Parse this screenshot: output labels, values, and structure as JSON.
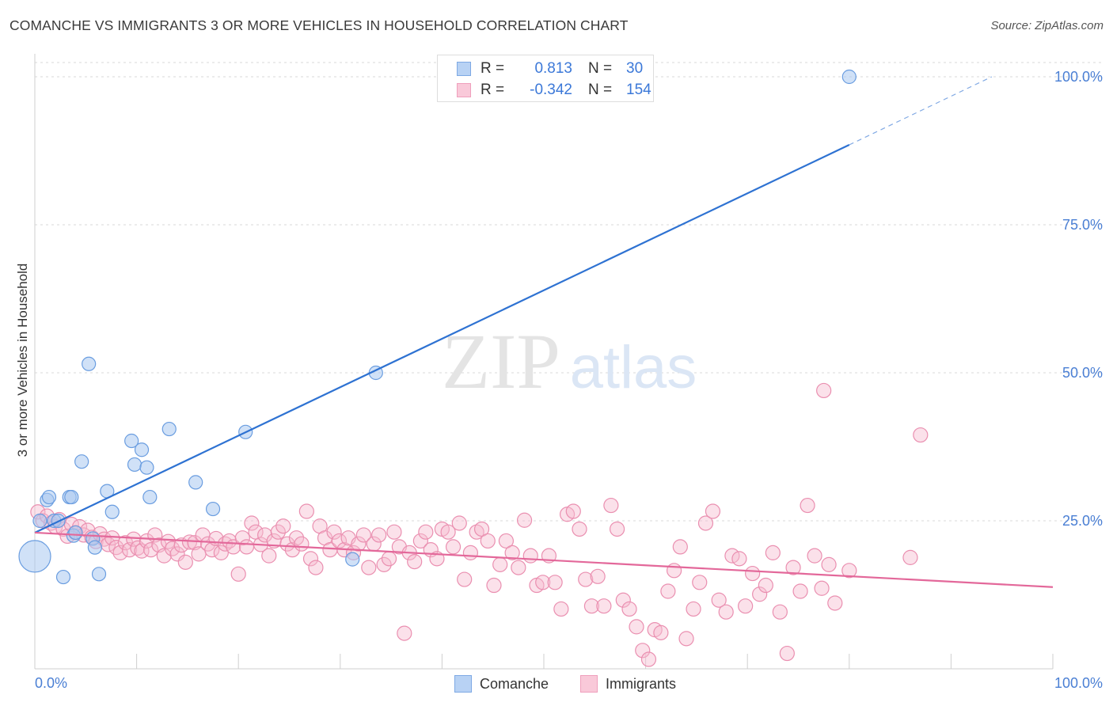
{
  "title": "COMANCHE VS IMMIGRANTS 3 OR MORE VEHICLES IN HOUSEHOLD CORRELATION CHART",
  "source": "Source: ZipAtlas.com",
  "watermark": {
    "zip": "ZIP",
    "atlas": "atlas"
  },
  "legend": {
    "rows": [
      {
        "r_label": "R =",
        "r_value": "0.813",
        "n_label": "N =",
        "n_value": "30"
      },
      {
        "r_label": "R =",
        "r_value": "-0.342",
        "n_label": "N =",
        "n_value": "154"
      }
    ]
  },
  "colors": {
    "blue_fill": "#a9c8f0",
    "blue_stroke": "#6a9de0",
    "blue_line": "#2e72d2",
    "pink_fill": "#f6bdd0",
    "pink_stroke": "#ea8fb0",
    "pink_line": "#e3689a",
    "axis_label": "#4a7fd4",
    "grid": "#d9d9d9"
  },
  "chart_data": {
    "type": "scatter",
    "ylabel": "3 or more Vehicles in Household",
    "xlim": [
      0,
      100
    ],
    "ylim": [
      0,
      100
    ],
    "x_tick_labels": [
      "0.0%",
      "100.0%"
    ],
    "y_ticks": [
      {
        "value": 25,
        "label": "25.0%"
      },
      {
        "value": 50,
        "label": "50.0%"
      },
      {
        "value": 75,
        "label": "75.0%"
      },
      {
        "value": 100,
        "label": "100.0%"
      }
    ],
    "grid": true,
    "series": [
      {
        "name": "Comanche",
        "color": "#a9c8f0",
        "points": [
          [
            0.0,
            19.0
          ],
          [
            0.5,
            25.0
          ],
          [
            1.2,
            28.5
          ],
          [
            1.4,
            29.0
          ],
          [
            1.9,
            25.0
          ],
          [
            2.3,
            25.0
          ],
          [
            2.8,
            15.5
          ],
          [
            3.4,
            29.0
          ],
          [
            3.6,
            29.0
          ],
          [
            3.8,
            22.5
          ],
          [
            4.0,
            23.0
          ],
          [
            4.6,
            35.0
          ],
          [
            5.3,
            51.5
          ],
          [
            5.7,
            22.0
          ],
          [
            5.9,
            20.5
          ],
          [
            6.3,
            16.0
          ],
          [
            7.1,
            30.0
          ],
          [
            7.6,
            26.5
          ],
          [
            9.5,
            38.5
          ],
          [
            9.8,
            34.5
          ],
          [
            10.5,
            37.0
          ],
          [
            11.0,
            34.0
          ],
          [
            11.3,
            29.0
          ],
          [
            13.2,
            40.5
          ],
          [
            15.8,
            31.5
          ],
          [
            17.5,
            27.0
          ],
          [
            20.7,
            40.0
          ],
          [
            31.2,
            18.5
          ],
          [
            33.5,
            50.0
          ],
          [
            80.0,
            100.0
          ]
        ],
        "trend": {
          "x0": 0,
          "y0": 23.0,
          "x1": 80,
          "y1": 88.5,
          "dash_to_x": 94,
          "dash_to_y": 100
        }
      },
      {
        "name": "Immigrants",
        "color": "#f6bdd0",
        "points": [
          [
            0.3,
            26.5
          ],
          [
            0.8,
            25.0
          ],
          [
            1.2,
            25.8
          ],
          [
            1.6,
            24.6
          ],
          [
            2.0,
            24.0
          ],
          [
            2.4,
            25.2
          ],
          [
            2.8,
            23.6
          ],
          [
            3.2,
            22.4
          ],
          [
            3.6,
            24.4
          ],
          [
            4.0,
            23.0
          ],
          [
            4.4,
            24.0
          ],
          [
            4.8,
            22.6
          ],
          [
            5.2,
            23.4
          ],
          [
            5.6,
            22.2
          ],
          [
            6.0,
            21.5
          ],
          [
            6.4,
            22.8
          ],
          [
            6.8,
            21.9
          ],
          [
            7.2,
            21.0
          ],
          [
            7.6,
            22.1
          ],
          [
            8.0,
            20.5
          ],
          [
            8.4,
            19.6
          ],
          [
            8.9,
            21.3
          ],
          [
            9.3,
            20.1
          ],
          [
            9.7,
            21.9
          ],
          [
            10.1,
            20.4
          ],
          [
            10.5,
            19.9
          ],
          [
            11.0,
            21.6
          ],
          [
            11.4,
            20.1
          ],
          [
            11.8,
            22.6
          ],
          [
            12.2,
            20.9
          ],
          [
            12.7,
            19.1
          ],
          [
            13.1,
            21.5
          ],
          [
            13.5,
            20.3
          ],
          [
            14.0,
            19.4
          ],
          [
            14.4,
            20.9
          ],
          [
            14.8,
            18.0
          ],
          [
            15.2,
            21.4
          ],
          [
            15.7,
            21.3
          ],
          [
            16.1,
            19.4
          ],
          [
            16.5,
            22.6
          ],
          [
            17.0,
            21.1
          ],
          [
            17.4,
            20.1
          ],
          [
            17.8,
            22.0
          ],
          [
            18.3,
            19.6
          ],
          [
            18.7,
            21.1
          ],
          [
            19.1,
            21.6
          ],
          [
            19.5,
            20.6
          ],
          [
            20.0,
            16.0
          ],
          [
            20.4,
            22.1
          ],
          [
            20.8,
            20.6
          ],
          [
            21.3,
            24.6
          ],
          [
            21.7,
            23.1
          ],
          [
            22.2,
            21.0
          ],
          [
            22.6,
            22.6
          ],
          [
            23.0,
            19.1
          ],
          [
            23.5,
            21.6
          ],
          [
            23.9,
            23.1
          ],
          [
            24.4,
            24.1
          ],
          [
            24.8,
            21.1
          ],
          [
            25.3,
            20.1
          ],
          [
            25.7,
            22.1
          ],
          [
            26.2,
            21.1
          ],
          [
            26.7,
            26.6
          ],
          [
            27.1,
            18.6
          ],
          [
            27.6,
            17.1
          ],
          [
            28.0,
            24.1
          ],
          [
            28.5,
            22.1
          ],
          [
            29.0,
            20.1
          ],
          [
            29.4,
            23.1
          ],
          [
            29.9,
            21.6
          ],
          [
            30.4,
            20.1
          ],
          [
            30.8,
            22.1
          ],
          [
            31.3,
            19.6
          ],
          [
            31.8,
            21.1
          ],
          [
            32.3,
            22.6
          ],
          [
            32.8,
            17.1
          ],
          [
            33.3,
            21.1
          ],
          [
            33.8,
            22.6
          ],
          [
            34.3,
            17.6
          ],
          [
            34.8,
            18.6
          ],
          [
            35.3,
            23.1
          ],
          [
            35.8,
            20.6
          ],
          [
            36.3,
            6.0
          ],
          [
            36.8,
            19.6
          ],
          [
            37.3,
            18.1
          ],
          [
            37.9,
            21.6
          ],
          [
            38.4,
            23.1
          ],
          [
            38.9,
            20.1
          ],
          [
            39.5,
            18.6
          ],
          [
            40.0,
            23.6
          ],
          [
            40.6,
            23.1
          ],
          [
            41.1,
            20.6
          ],
          [
            41.7,
            24.6
          ],
          [
            42.2,
            15.1
          ],
          [
            42.8,
            19.6
          ],
          [
            43.4,
            23.1
          ],
          [
            43.9,
            23.6
          ],
          [
            44.5,
            21.6
          ],
          [
            45.1,
            14.1
          ],
          [
            45.7,
            17.6
          ],
          [
            46.3,
            21.6
          ],
          [
            46.9,
            19.6
          ],
          [
            47.5,
            17.1
          ],
          [
            48.1,
            25.1
          ],
          [
            48.7,
            19.1
          ],
          [
            49.3,
            14.1
          ],
          [
            49.9,
            14.6
          ],
          [
            50.5,
            19.1
          ],
          [
            51.1,
            14.6
          ],
          [
            51.7,
            10.1
          ],
          [
            52.3,
            26.1
          ],
          [
            52.9,
            26.6
          ],
          [
            53.5,
            23.6
          ],
          [
            54.1,
            15.1
          ],
          [
            54.7,
            10.6
          ],
          [
            55.3,
            15.6
          ],
          [
            55.9,
            10.6
          ],
          [
            56.6,
            27.6
          ],
          [
            57.2,
            23.6
          ],
          [
            57.8,
            11.6
          ],
          [
            58.4,
            10.1
          ],
          [
            59.1,
            7.1
          ],
          [
            59.7,
            3.1
          ],
          [
            60.3,
            1.6
          ],
          [
            60.9,
            6.6
          ],
          [
            61.5,
            6.1
          ],
          [
            62.2,
            13.1
          ],
          [
            62.8,
            16.6
          ],
          [
            63.4,
            20.6
          ],
          [
            64.0,
            5.1
          ],
          [
            64.7,
            10.1
          ],
          [
            65.3,
            14.6
          ],
          [
            65.9,
            24.6
          ],
          [
            66.6,
            26.6
          ],
          [
            67.2,
            11.6
          ],
          [
            67.9,
            9.6
          ],
          [
            68.5,
            19.1
          ],
          [
            69.2,
            18.6
          ],
          [
            69.8,
            10.6
          ],
          [
            70.5,
            16.1
          ],
          [
            71.2,
            12.6
          ],
          [
            71.8,
            14.1
          ],
          [
            72.5,
            19.6
          ],
          [
            73.2,
            9.6
          ],
          [
            73.9,
            2.6
          ],
          [
            74.5,
            17.1
          ],
          [
            75.2,
            13.1
          ],
          [
            75.9,
            27.6
          ],
          [
            76.6,
            19.1
          ],
          [
            77.3,
            13.6
          ],
          [
            78.0,
            17.6
          ],
          [
            78.6,
            11.1
          ],
          [
            80.0,
            16.6
          ],
          [
            86.0,
            18.8
          ],
          [
            77.5,
            47.0
          ],
          [
            87.0,
            39.5
          ]
        ],
        "trend": {
          "x0": 0,
          "y0": 23.0,
          "x1": 100,
          "y1": 13.8
        }
      }
    ]
  }
}
